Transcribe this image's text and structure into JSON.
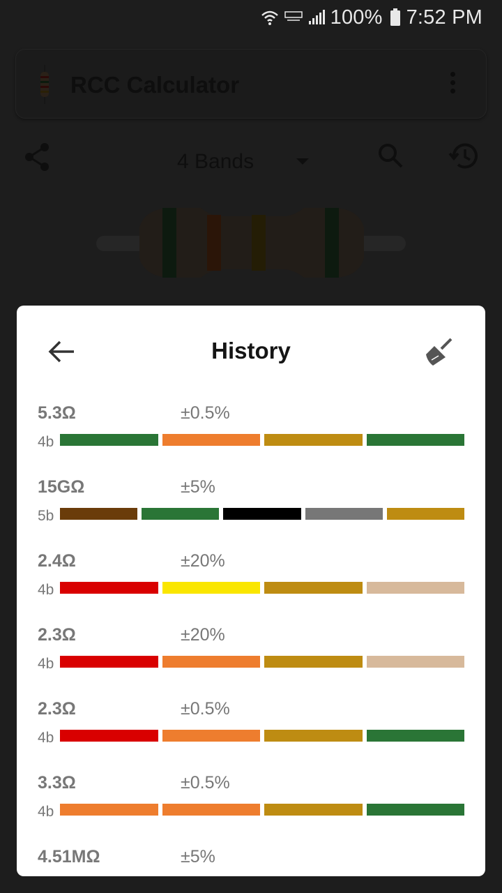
{
  "status_bar": {
    "battery": "100%",
    "time": "7:52 PM",
    "icons": [
      "wifi-icon",
      "lte-icon",
      "signal-icon",
      "battery-icon"
    ]
  },
  "app": {
    "title": "RCC Calculator",
    "band_select": "4 Bands",
    "icons": [
      "resistor-logo-icon",
      "more-vert-icon",
      "share-icon",
      "dropdown-caret-icon",
      "search-icon",
      "history-icon"
    ]
  },
  "dialog": {
    "title": "History",
    "icons": [
      "back-arrow-icon",
      "broom-icon"
    ],
    "items": [
      {
        "value": "5.3Ω",
        "tolerance": "±0.5%",
        "type": "4b",
        "bands": [
          "#2a7536",
          "#ee7d2e",
          "#be8c12",
          "#2a7536"
        ]
      },
      {
        "value": "15GΩ",
        "tolerance": "±5%",
        "type": "5b",
        "bands": [
          "#6a3c0a",
          "#2a7536",
          "#000000",
          "#777777",
          "#be8c12"
        ]
      },
      {
        "value": "2.4Ω",
        "tolerance": "±20%",
        "type": "4b",
        "bands": [
          "#d90000",
          "#fae600",
          "#be8c12",
          "#d7b99b"
        ]
      },
      {
        "value": "2.3Ω",
        "tolerance": "±20%",
        "type": "4b",
        "bands": [
          "#d90000",
          "#ee7d2e",
          "#be8c12",
          "#d7b99b"
        ]
      },
      {
        "value": "2.3Ω",
        "tolerance": "±0.5%",
        "type": "4b",
        "bands": [
          "#d90000",
          "#ee7d2e",
          "#be8c12",
          "#2a7536"
        ]
      },
      {
        "value": "3.3Ω",
        "tolerance": "±0.5%",
        "type": "4b",
        "bands": [
          "#ee7d2e",
          "#ee7d2e",
          "#be8c12",
          "#2a7536"
        ]
      },
      {
        "value": "4.51MΩ",
        "tolerance": "±5%",
        "type": "",
        "bands": []
      }
    ]
  },
  "colors": {
    "scrim": "#1d1d1d",
    "dialog_bg": "#ffffff",
    "text_muted": "#777777",
    "title_text": "#151515"
  }
}
